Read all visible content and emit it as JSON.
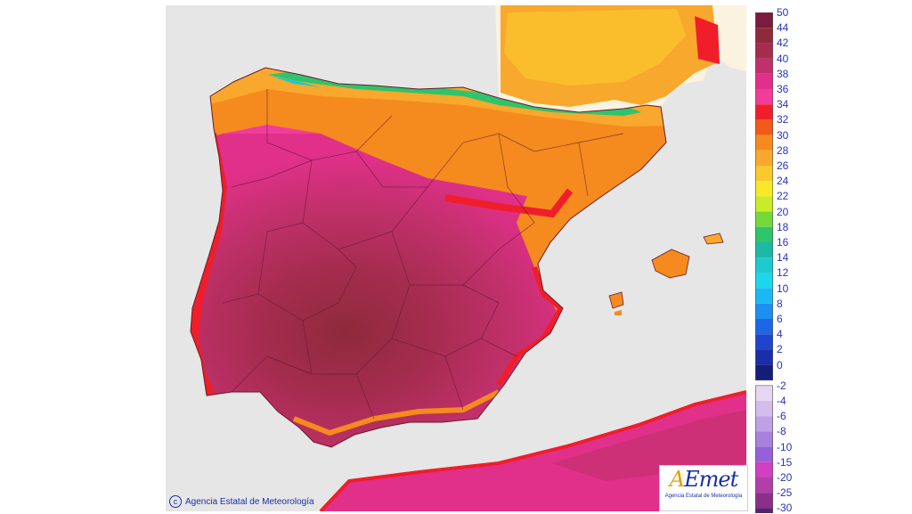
{
  "legend": {
    "positive": [
      {
        "label": "50",
        "color": "#7a1c3e"
      },
      {
        "label": "44",
        "color": "#8f2a3a"
      },
      {
        "label": "42",
        "color": "#a42c4e"
      },
      {
        "label": "40",
        "color": "#c0306a"
      },
      {
        "label": "38",
        "color": "#e0308a"
      },
      {
        "label": "36",
        "color": "#f23c9c"
      },
      {
        "label": "34",
        "color": "#f01e2a"
      },
      {
        "label": "32",
        "color": "#f25a1a"
      },
      {
        "label": "30",
        "color": "#f58a1e"
      },
      {
        "label": "28",
        "color": "#f8a82c"
      },
      {
        "label": "26",
        "color": "#fbc82e"
      },
      {
        "label": "24",
        "color": "#f8e828"
      },
      {
        "label": "22",
        "color": "#c8ec28"
      },
      {
        "label": "20",
        "color": "#74d83a"
      },
      {
        "label": "18",
        "color": "#2ec46c"
      },
      {
        "label": "16",
        "color": "#1eb8a6"
      },
      {
        "label": "14",
        "color": "#1ccad0"
      },
      {
        "label": "12",
        "color": "#1cd6ec"
      },
      {
        "label": "10",
        "color": "#1cb8f4"
      },
      {
        "label": "8",
        "color": "#1e8ef0"
      },
      {
        "label": "6",
        "color": "#1e66e6"
      },
      {
        "label": "4",
        "color": "#1e46cc"
      },
      {
        "label": "2",
        "color": "#1a2ea8"
      },
      {
        "label": "0",
        "color": "#141e7a"
      }
    ],
    "negative": [
      {
        "label": "-2",
        "color": "#e6d6f2"
      },
      {
        "label": "-4",
        "color": "#d4bcec"
      },
      {
        "label": "-6",
        "color": "#c0a0e6"
      },
      {
        "label": "-8",
        "color": "#a880de"
      },
      {
        "label": "-10",
        "color": "#9660d8"
      },
      {
        "label": "-15",
        "color": "#d040c0"
      },
      {
        "label": "-20",
        "color": "#b040a8"
      },
      {
        "label": "-25",
        "color": "#8a2f8c"
      },
      {
        "label": "-30",
        "color": "#5a2070"
      }
    ]
  },
  "map": {
    "sea_color": "#e6e6e6",
    "foreign_land_color": "#fbf2df"
  },
  "copyright": "Agencia Estatal de Meteorología",
  "logo": {
    "text": "AEmet",
    "subtitle": "Agencia Estatal de Meteorología"
  }
}
